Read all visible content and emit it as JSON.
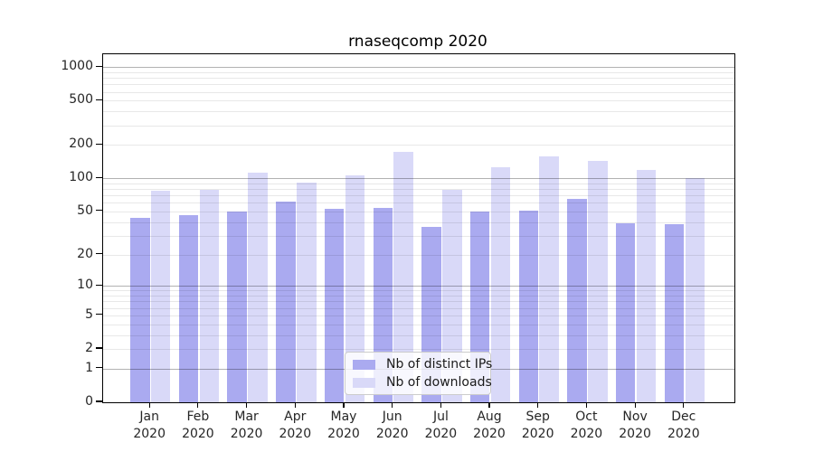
{
  "title": "rnaseqcomp 2020",
  "chart_data": {
    "type": "bar",
    "title": "rnaseqcomp 2020",
    "scale": "log1p",
    "grid": "on",
    "legend_position": "lower center",
    "categories": [
      "Jan\n2020",
      "Feb\n2020",
      "Mar\n2020",
      "Apr\n2020",
      "May\n2020",
      "Jun\n2020",
      "Jul\n2020",
      "Aug\n2020",
      "Sep\n2020",
      "Oct\n2020",
      "Nov\n2020",
      "Dec\n2020"
    ],
    "series": [
      {
        "name": "Nb of distinct IPs",
        "color": "#aaaaf0",
        "values": [
          44,
          46,
          50,
          61,
          53,
          54,
          36,
          50,
          51,
          65,
          39,
          38
        ]
      },
      {
        "name": "Nb of downloads",
        "color": "#d9d9f8",
        "values": [
          77,
          79,
          112,
          92,
          106,
          173,
          78,
          125,
          157,
          143,
          120,
          101
        ]
      }
    ],
    "y_ticks": [
      0,
      1,
      2,
      5,
      10,
      20,
      50,
      100,
      200,
      500,
      1000
    ],
    "y_major_lines": [
      1,
      10,
      100,
      1000
    ],
    "ylim": [
      0,
      1300
    ],
    "xlabel": "",
    "ylabel": ""
  }
}
